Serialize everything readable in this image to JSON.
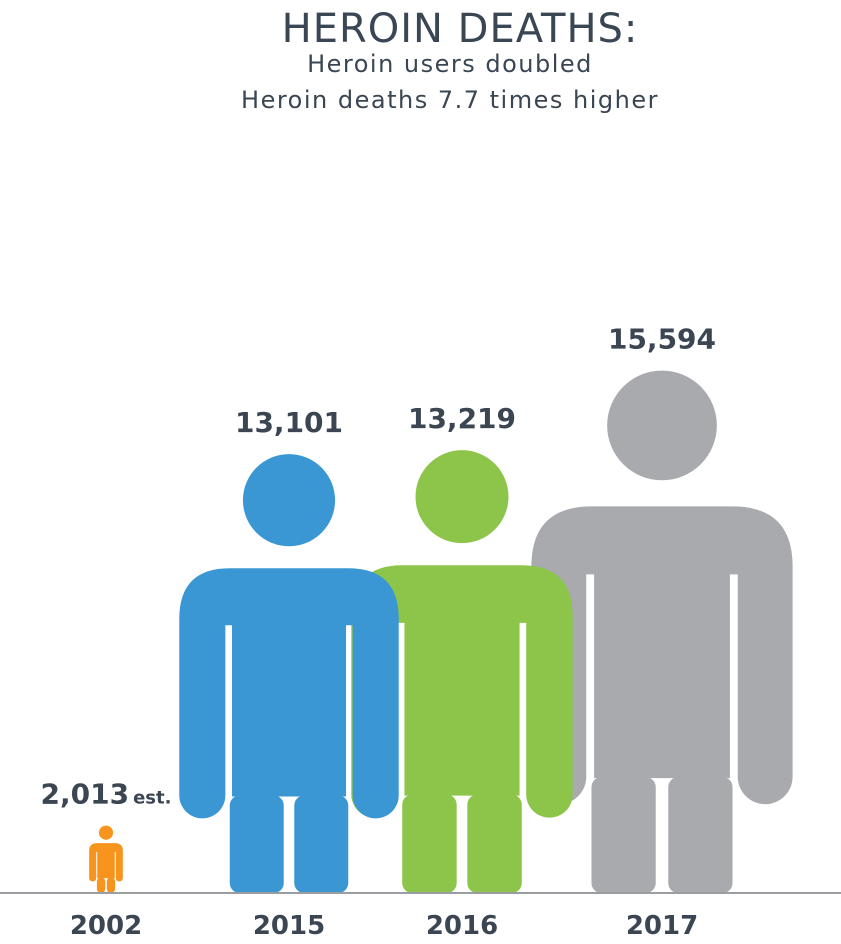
{
  "header": {
    "title": "HEROIN DEATHS:",
    "subtitle_lines": [
      "Heroin users doubled",
      "Heroin deaths 7.7 times higher"
    ]
  },
  "colors": {
    "2002": "#f7941d",
    "2015": "#3a97d4",
    "2016": "#8dc54b",
    "2017": "#a8aaad",
    "baseline": "#9a9ea3",
    "text": "#3b4652"
  },
  "chart_data": {
    "type": "bar",
    "marks": "person-icons",
    "categories": [
      "2002",
      "2015",
      "2016",
      "2017"
    ],
    "values": [
      2013,
      13101,
      13219,
      15594
    ],
    "value_labels": [
      "2,013",
      "13,101",
      "13,219",
      "15,594"
    ],
    "value_suffixes": [
      "est.",
      "",
      "",
      ""
    ],
    "title": "HEROIN DEATHS:",
    "subtitle": "Heroin users doubled Heroin deaths 7.7 times higher",
    "xlabel": "",
    "ylabel": "",
    "grid": false,
    "legend": "none"
  }
}
